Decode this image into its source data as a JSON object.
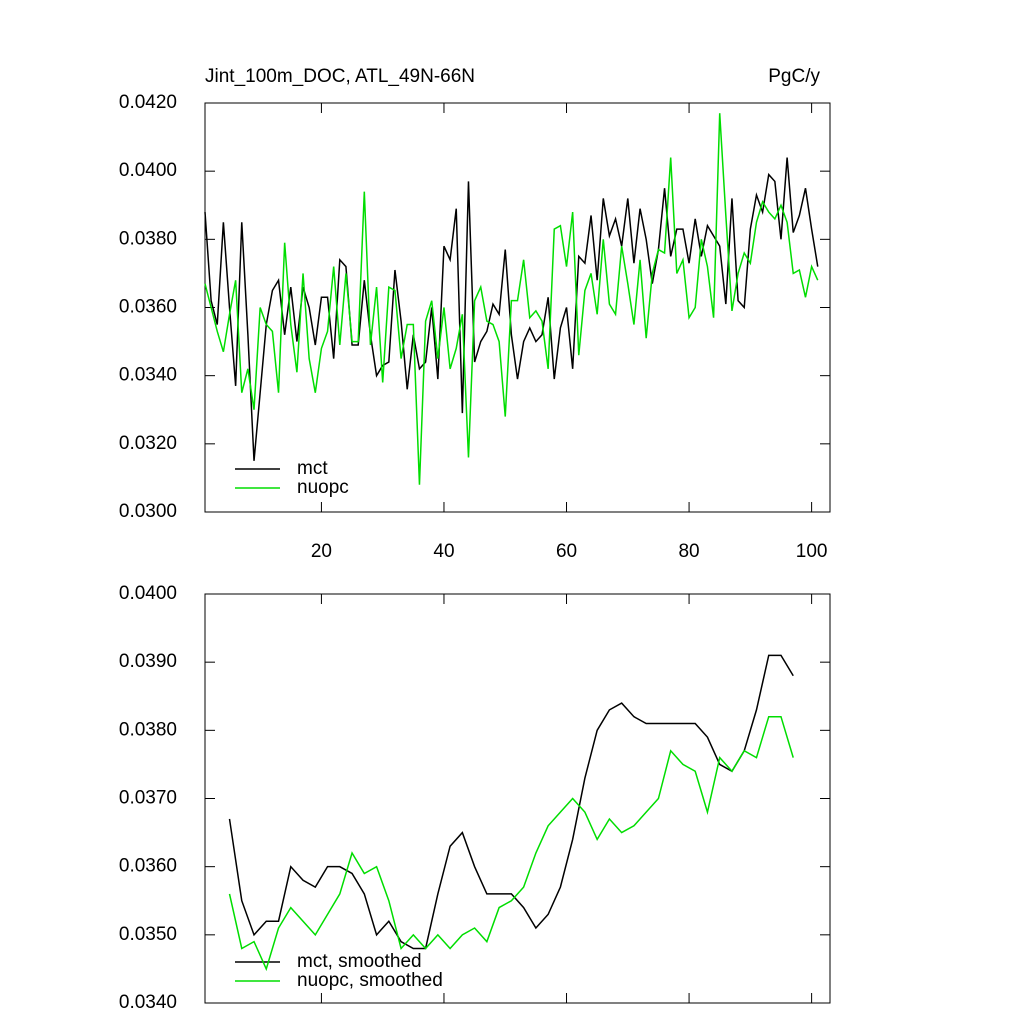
{
  "chart_data": [
    {
      "type": "line",
      "title": "Jint_100m_DOC, ATL_49N-66N",
      "units": "PgC/y",
      "xlim": [
        1,
        103
      ],
      "xticks": [
        20,
        40,
        60,
        80,
        100
      ],
      "ylim": [
        0.03,
        0.042
      ],
      "yticks": [
        {
          "value": 0.03,
          "label": "0.0300"
        },
        {
          "value": 0.032,
          "label": "0.0320"
        },
        {
          "value": 0.034,
          "label": "0.0340"
        },
        {
          "value": 0.036,
          "label": "0.0360"
        },
        {
          "value": 0.038,
          "label": "0.0380"
        },
        {
          "value": 0.04,
          "label": "0.0400"
        },
        {
          "value": 0.042,
          "label": "0.0420"
        }
      ],
      "x": [
        1,
        2,
        3,
        4,
        5,
        6,
        7,
        8,
        9,
        10,
        11,
        12,
        13,
        14,
        15,
        16,
        17,
        18,
        19,
        20,
        21,
        22,
        23,
        24,
        25,
        26,
        27,
        28,
        29,
        30,
        31,
        32,
        33,
        34,
        35,
        36,
        37,
        38,
        39,
        40,
        41,
        42,
        43,
        44,
        45,
        46,
        47,
        48,
        49,
        50,
        51,
        52,
        53,
        54,
        55,
        56,
        57,
        58,
        59,
        60,
        61,
        62,
        63,
        64,
        65,
        66,
        67,
        68,
        69,
        70,
        71,
        72,
        73,
        74,
        75,
        76,
        77,
        78,
        79,
        80,
        81,
        82,
        83,
        84,
        85,
        86,
        87,
        88,
        89,
        90,
        91,
        92,
        93,
        94,
        95,
        96,
        97,
        98,
        99,
        100,
        101
      ],
      "series": [
        {
          "name": "mct",
          "color": "#000000",
          "values": [
            0.0388,
            0.0362,
            0.0355,
            0.0385,
            0.036,
            0.0337,
            0.0385,
            0.0352,
            0.0315,
            0.0335,
            0.0355,
            0.0365,
            0.0368,
            0.0352,
            0.0366,
            0.035,
            0.0366,
            0.036,
            0.0349,
            0.0363,
            0.0363,
            0.0345,
            0.0374,
            0.0372,
            0.0349,
            0.0349,
            0.0368,
            0.0352,
            0.034,
            0.0343,
            0.0344,
            0.0371,
            0.0356,
            0.0336,
            0.0352,
            0.0342,
            0.0344,
            0.036,
            0.0339,
            0.0378,
            0.0374,
            0.0389,
            0.0329,
            0.0397,
            0.0344,
            0.035,
            0.0353,
            0.0361,
            0.0358,
            0.0377,
            0.0352,
            0.0339,
            0.035,
            0.0354,
            0.035,
            0.0352,
            0.0363,
            0.0339,
            0.0354,
            0.036,
            0.0342,
            0.0375,
            0.0373,
            0.0387,
            0.0368,
            0.0392,
            0.0381,
            0.0386,
            0.0378,
            0.0392,
            0.0373,
            0.0389,
            0.038,
            0.0367,
            0.0377,
            0.0395,
            0.0375,
            0.0383,
            0.0383,
            0.0373,
            0.0386,
            0.0375,
            0.0384,
            0.0381,
            0.0378,
            0.0361,
            0.0392,
            0.0362,
            0.036,
            0.0383,
            0.0393,
            0.0388,
            0.0399,
            0.0397,
            0.038,
            0.0404,
            0.0382,
            0.0387,
            0.0395,
            0.0383,
            0.0372
          ]
        },
        {
          "name": "nuopc",
          "color": "#00dd00",
          "values": [
            0.0367,
            0.036,
            0.0353,
            0.0347,
            0.0358,
            0.0368,
            0.0335,
            0.0342,
            0.033,
            0.036,
            0.0355,
            0.0353,
            0.0335,
            0.0379,
            0.0355,
            0.0341,
            0.037,
            0.0345,
            0.0335,
            0.0348,
            0.0353,
            0.0372,
            0.0349,
            0.037,
            0.035,
            0.035,
            0.0394,
            0.0349,
            0.0366,
            0.0338,
            0.0366,
            0.0365,
            0.0345,
            0.0355,
            0.0355,
            0.0308,
            0.0356,
            0.0362,
            0.0345,
            0.036,
            0.0342,
            0.0348,
            0.0358,
            0.0316,
            0.0362,
            0.0366,
            0.0356,
            0.0355,
            0.035,
            0.0328,
            0.0362,
            0.0362,
            0.0374,
            0.0357,
            0.0359,
            0.0356,
            0.0342,
            0.0383,
            0.0384,
            0.0372,
            0.0388,
            0.0346,
            0.0365,
            0.037,
            0.0358,
            0.038,
            0.0361,
            0.0358,
            0.0378,
            0.0367,
            0.0355,
            0.0374,
            0.0351,
            0.037,
            0.0377,
            0.0376,
            0.0404,
            0.037,
            0.0374,
            0.0357,
            0.036,
            0.038,
            0.0372,
            0.0357,
            0.0417,
            0.0387,
            0.0359,
            0.037,
            0.0376,
            0.0373,
            0.0385,
            0.0391,
            0.0388,
            0.0386,
            0.039,
            0.0385,
            0.037,
            0.0371,
            0.0363,
            0.0372,
            0.0368
          ]
        }
      ]
    },
    {
      "type": "line",
      "xlim": [
        1,
        103
      ],
      "xticks": [
        20,
        40,
        60,
        80,
        100
      ],
      "ylim": [
        0.034,
        0.04
      ],
      "yticks": [
        {
          "value": 0.034,
          "label": "0.0340"
        },
        {
          "value": 0.035,
          "label": "0.0350"
        },
        {
          "value": 0.036,
          "label": "0.0360"
        },
        {
          "value": 0.037,
          "label": "0.0370"
        },
        {
          "value": 0.038,
          "label": "0.0380"
        },
        {
          "value": 0.039,
          "label": "0.0390"
        },
        {
          "value": 0.04,
          "label": "0.0400"
        }
      ],
      "x": [
        5,
        7,
        9,
        11,
        13,
        15,
        17,
        19,
        21,
        23,
        25,
        27,
        29,
        31,
        33,
        35,
        37,
        39,
        41,
        43,
        45,
        47,
        49,
        51,
        53,
        55,
        57,
        59,
        61,
        63,
        65,
        67,
        69,
        71,
        73,
        75,
        77,
        79,
        81,
        83,
        85,
        87,
        89,
        91,
        93,
        95,
        97
      ],
      "series": [
        {
          "name": "mct, smoothed",
          "color": "#000000",
          "values": [
            0.0367,
            0.0355,
            0.035,
            0.0352,
            0.0352,
            0.036,
            0.0358,
            0.0357,
            0.036,
            0.036,
            0.0359,
            0.0356,
            0.035,
            0.0352,
            0.0349,
            0.0348,
            0.0348,
            0.0356,
            0.0363,
            0.0365,
            0.036,
            0.0356,
            0.0356,
            0.0356,
            0.0354,
            0.0351,
            0.0353,
            0.0357,
            0.0364,
            0.0373,
            0.038,
            0.0383,
            0.0384,
            0.0382,
            0.0381,
            0.0381,
            0.0381,
            0.0381,
            0.0381,
            0.0379,
            0.0375,
            0.0374,
            0.0377,
            0.0383,
            0.0391,
            0.0391,
            0.0388
          ]
        },
        {
          "name": "nuopc, smoothed",
          "color": "#00dd00",
          "values": [
            0.0356,
            0.0348,
            0.0349,
            0.0345,
            0.0351,
            0.0354,
            0.0352,
            0.035,
            0.0353,
            0.0356,
            0.0362,
            0.0359,
            0.036,
            0.0355,
            0.0348,
            0.035,
            0.0348,
            0.035,
            0.0348,
            0.035,
            0.0351,
            0.0349,
            0.0354,
            0.0355,
            0.0357,
            0.0362,
            0.0366,
            0.0368,
            0.037,
            0.0368,
            0.0364,
            0.0367,
            0.0365,
            0.0366,
            0.0368,
            0.037,
            0.0377,
            0.0375,
            0.0374,
            0.0368,
            0.0376,
            0.0374,
            0.0377,
            0.0376,
            0.0382,
            0.0382,
            0.0376
          ]
        }
      ]
    }
  ]
}
